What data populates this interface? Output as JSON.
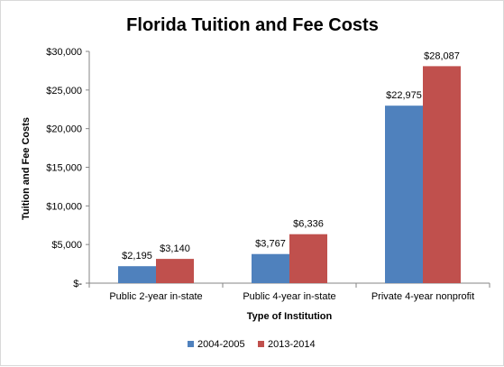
{
  "chart_data": {
    "type": "bar",
    "title": "Florida Tuition and Fee Costs",
    "xlabel": "Type of Institution",
    "ylabel": "Tuition and Fee Costs",
    "categories": [
      "Public 2-year in-state",
      "Public 4-year in-state",
      "Private 4-year nonprofit"
    ],
    "series": [
      {
        "name": "2004-2005",
        "values": [
          2195,
          3767,
          22975
        ],
        "labels": [
          "$2,195",
          "$3,767",
          "$22,975"
        ],
        "color": "#4f81bd"
      },
      {
        "name": "2013-2014",
        "values": [
          3140,
          6336,
          28087
        ],
        "labels": [
          "$3,140",
          "$6,336",
          "$28,087"
        ],
        "color": "#c0504d"
      }
    ],
    "ylim": [
      0,
      30000
    ],
    "yticks": [
      0,
      5000,
      10000,
      15000,
      20000,
      25000,
      30000
    ],
    "ytick_labels": [
      "$-",
      "$5,000",
      "$10,000",
      "$15,000",
      "$20,000",
      "$25,000",
      "$30,000"
    ],
    "grid": false,
    "legend_position": "bottom"
  }
}
